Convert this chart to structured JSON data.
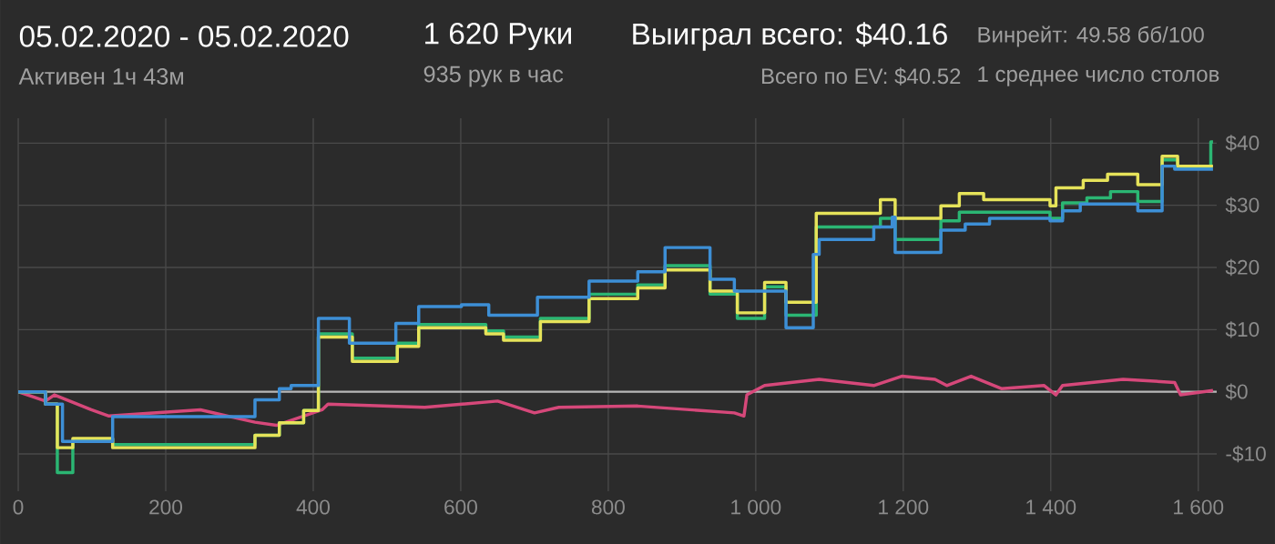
{
  "chart_data": {
    "type": "step",
    "title": "05.02.2020 - 05.02.2020",
    "subtitle": "Активен 1ч 43м",
    "annotations": [
      "1 620 Руки",
      "935 рук в час",
      "Выиграл всего: $40.16",
      "Всего по EV: $40.52",
      "Винрейт: 49.58 бб/100",
      "1 среднее число столов"
    ],
    "xlim": [
      0,
      1625
    ],
    "ylim": [
      -16,
      44
    ],
    "xticks": [
      0,
      200,
      400,
      600,
      800,
      {
        "value": 1000,
        "label": "1 000"
      },
      {
        "value": 1200,
        "label": "1 200"
      },
      {
        "value": 1400,
        "label": "1 400"
      },
      {
        "value": 1600,
        "label": "1 600"
      }
    ],
    "yticks": [
      {
        "value": -10,
        "label": "-$10"
      },
      {
        "value": 0,
        "label": "$0"
      },
      {
        "value": 10,
        "label": "$10"
      },
      {
        "value": 20,
        "label": "$20"
      },
      {
        "value": 30,
        "label": "$30"
      },
      {
        "value": 40,
        "label": "$40"
      }
    ],
    "grid": true,
    "ref_lines": [
      {
        "axis": "y",
        "value": 0,
        "color": "#b8b8b8"
      }
    ],
    "series": [
      {
        "color": "#3d8fd6",
        "x": [
          0,
          37,
          60,
          128,
          321,
          354,
          370,
          407,
          449,
          512,
          543,
          601,
          638,
          704,
          774,
          840,
          877,
          938,
          971,
          1041,
          1078,
          1086,
          1160,
          1185,
          1189,
          1251,
          1284,
          1317,
          1399,
          1416,
          1440,
          1518,
          1551,
          1568,
          1620
        ],
        "values": [
          0,
          -2,
          -8,
          -4,
          -1.3,
          0.5,
          1,
          11.8,
          7.8,
          11,
          13.7,
          14,
          12.3,
          15.2,
          17.8,
          19.3,
          23.2,
          18.1,
          16.2,
          10.3,
          22.1,
          24.5,
          26.5,
          28.1,
          22.4,
          26,
          27,
          27.9,
          27.5,
          29.1,
          30.2,
          29.1,
          36.3,
          35.8,
          35.8
        ]
      },
      {
        "color": "#e6e35a",
        "x": [
          0,
          37,
          53,
          74,
          128,
          321,
          354,
          387,
          407,
          453,
          514,
          543,
          634,
          658,
          708,
          774,
          840,
          877,
          938,
          975,
          1012,
          1041,
          1082,
          1169,
          1189,
          1251,
          1276,
          1309,
          1399,
          1407,
          1444,
          1477,
          1518,
          1551,
          1572,
          1620
        ],
        "values": [
          0,
          -2,
          -9,
          -7.5,
          -9,
          -7,
          -5,
          -3,
          8.8,
          4.9,
          7.3,
          10.3,
          9.3,
          8.3,
          11.3,
          15,
          16.7,
          19.6,
          16.2,
          12.7,
          17.6,
          14.4,
          28.7,
          30.9,
          27.9,
          29.9,
          31.9,
          30.9,
          29.9,
          32.8,
          34,
          35,
          33.3,
          37.9,
          36.3,
          36.3
        ]
      },
      {
        "color": "#2bb673",
        "x": [
          0,
          37,
          53,
          74,
          128,
          321,
          354,
          387,
          407,
          453,
          514,
          543,
          634,
          658,
          708,
          774,
          840,
          877,
          938,
          975,
          1012,
          1041,
          1082,
          1169,
          1189,
          1251,
          1276,
          1399,
          1416,
          1449,
          1481,
          1518,
          1551,
          1572,
          1617,
          1620
        ],
        "values": [
          0,
          -2,
          -13,
          -7.8,
          -8.5,
          -7,
          -5,
          -3,
          9.3,
          5.4,
          7.8,
          10.8,
          9.8,
          8.8,
          11.8,
          15.7,
          17.2,
          20.3,
          15.7,
          11.8,
          16.9,
          12.3,
          26.5,
          27.9,
          24.5,
          27.5,
          28.9,
          27.9,
          30.4,
          31.2,
          32.2,
          30.6,
          37.3,
          36,
          40.2,
          40.2
        ]
      },
      {
        "type": "line",
        "color": "#d6487a",
        "x": [
          0,
          37,
          49,
          99,
          123,
          247,
          321,
          350,
          387,
          412,
          420,
          551,
          650,
          700,
          733,
          840,
          971,
          984,
          988,
          1012,
          1086,
          1160,
          1198,
          1243,
          1259,
          1292,
          1333,
          1391,
          1407,
          1416,
          1498,
          1568,
          1576,
          1620
        ],
        "values": [
          0,
          -1.5,
          -0.5,
          -2.9,
          -3.9,
          -2.9,
          -4.9,
          -5.4,
          -3.9,
          -2.9,
          -2,
          -2.5,
          -1.5,
          -3.4,
          -2.5,
          -2.3,
          -3.4,
          -3.9,
          -0.5,
          1,
          2,
          1,
          2.5,
          2,
          1,
          2.5,
          0.5,
          1,
          -0.5,
          1,
          2,
          1.5,
          -0.5,
          0.2
        ]
      }
    ]
  }
}
